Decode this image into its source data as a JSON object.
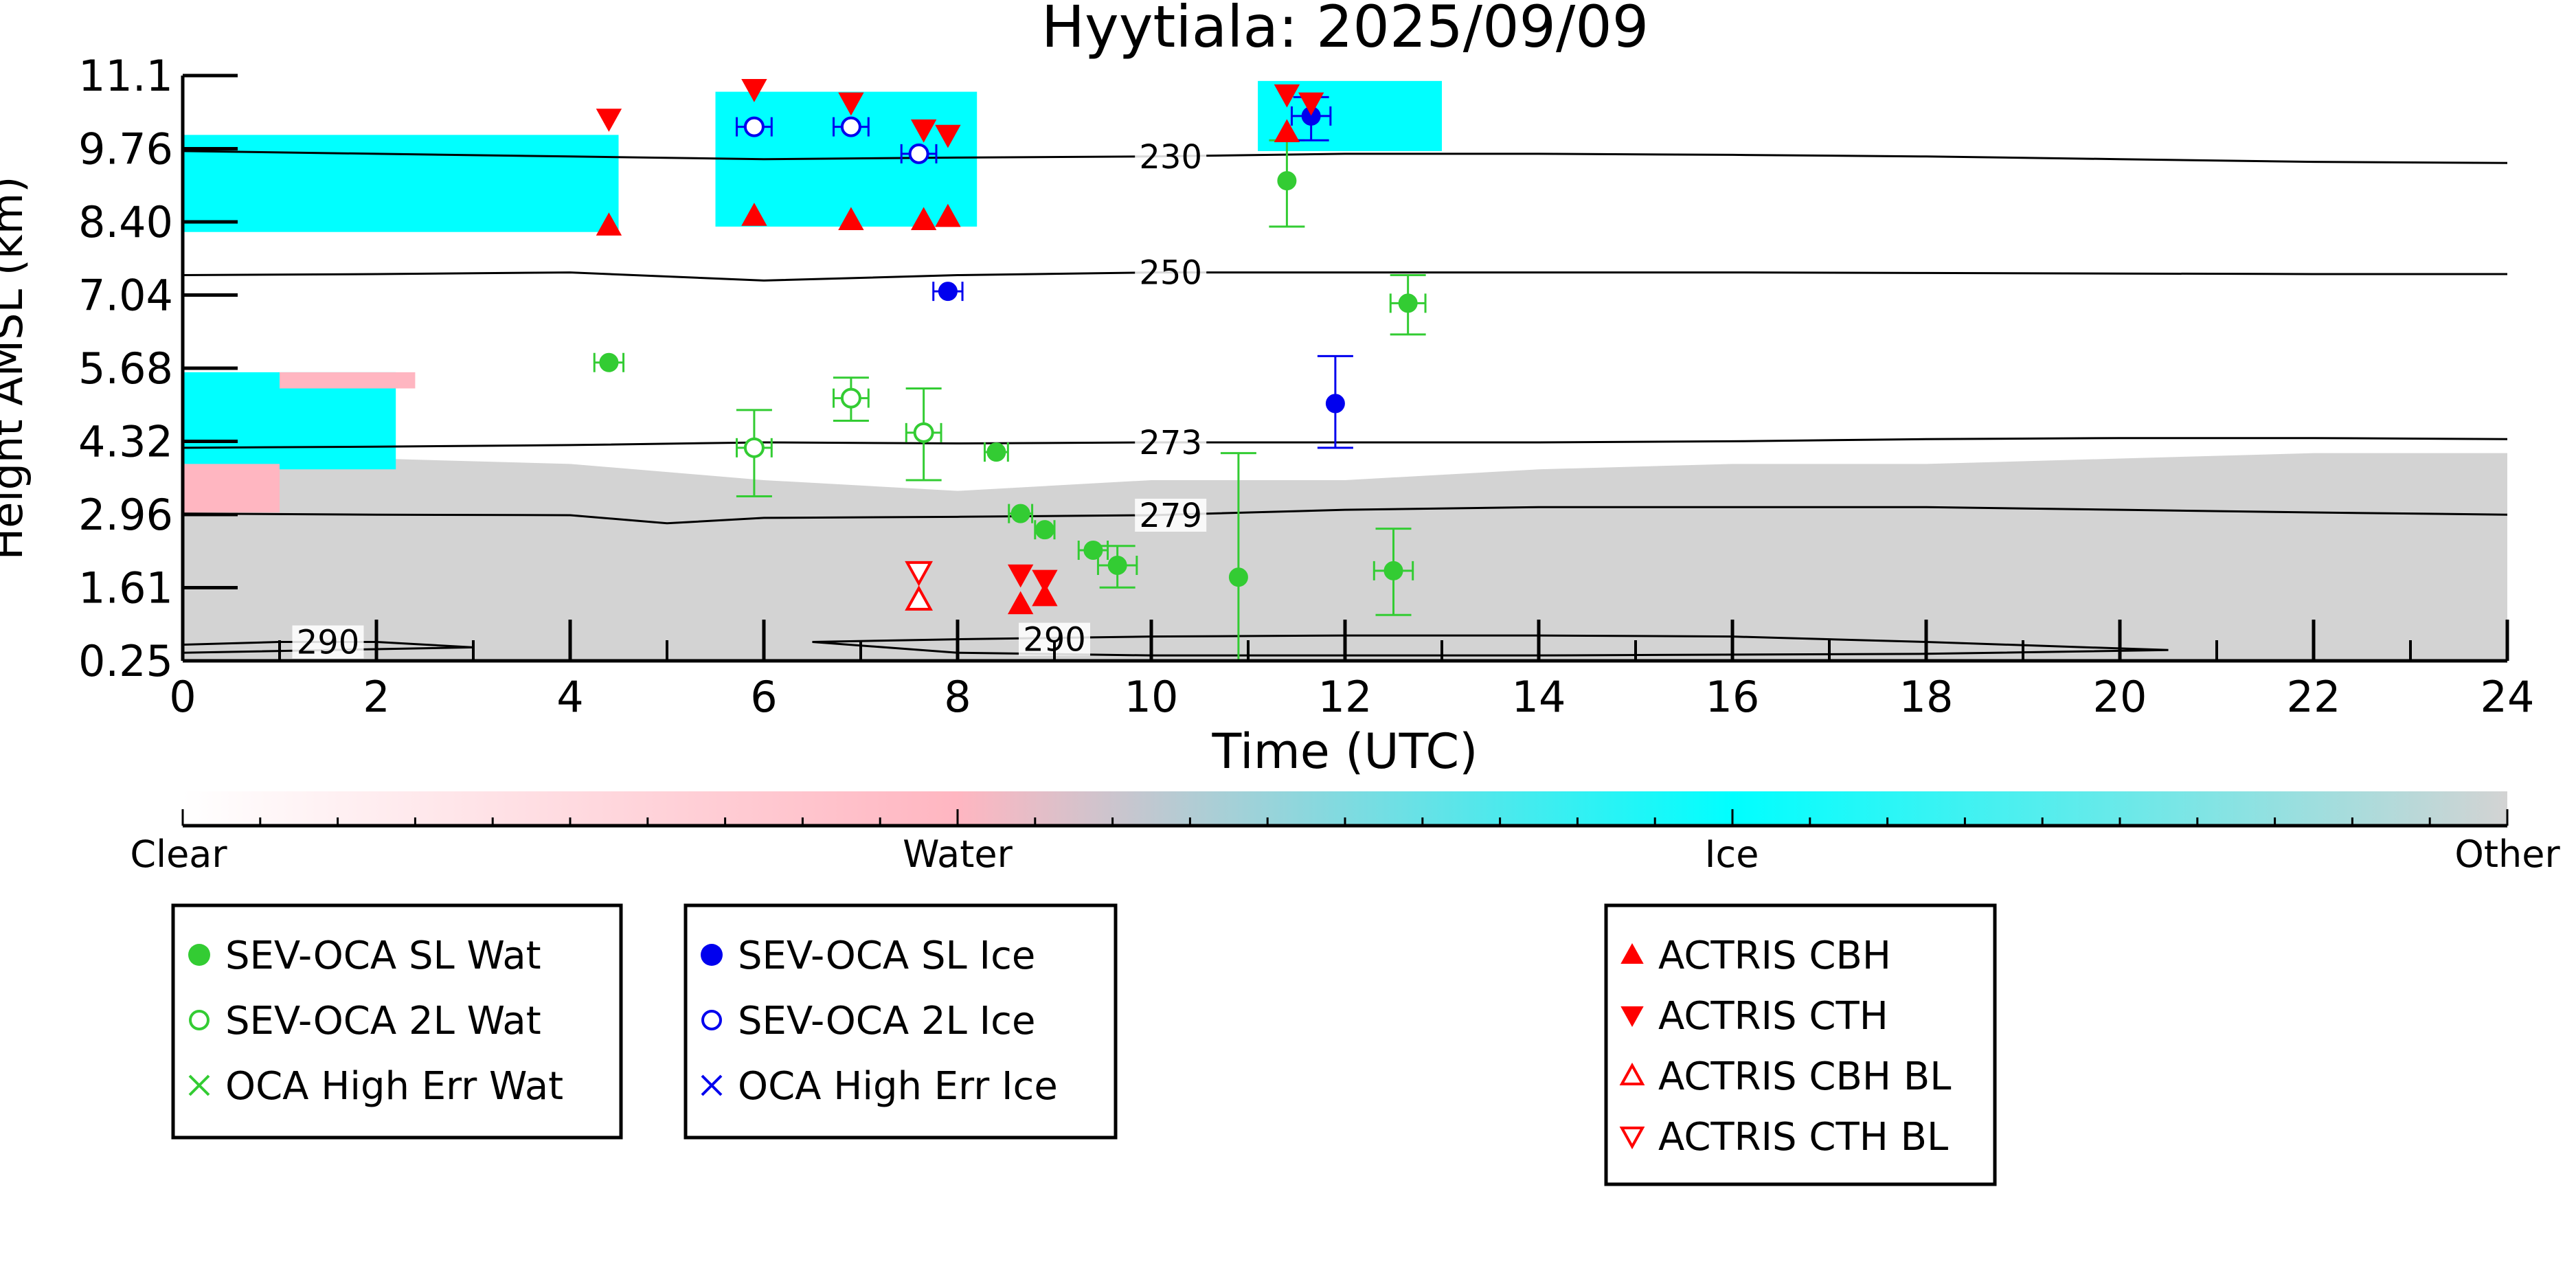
{
  "chart_data": {
    "type": "scatter",
    "title": "Hyytiala: 2025/09/09",
    "xlabel": "Time (UTC)",
    "ylabel": "Height AMSL (km)",
    "xlim": [
      0,
      24
    ],
    "ylim": [
      0.25,
      11.1
    ],
    "xticks": [
      "0",
      "2",
      "4",
      "6",
      "8",
      "10",
      "12",
      "14",
      "16",
      "18",
      "20",
      "22",
      "24"
    ],
    "yticks": [
      "0.25",
      "1.61",
      "2.96",
      "4.32",
      "5.68",
      "7.04",
      "8.40",
      "9.76",
      "11.1"
    ],
    "background": {
      "description_labels": [
        "Clear",
        "Water",
        "Ice",
        "Other"
      ],
      "colorbar_colors": [
        "#ffffff",
        "#ffb6c1",
        "#00ffff",
        "#d3d3d3"
      ],
      "regions": [
        {
          "class": "Other",
          "x": [
            0,
            24
          ],
          "ymax_profile": [
            [
              0,
              4.1
            ],
            [
              2,
              4.0
            ],
            [
              4,
              3.9
            ],
            [
              6,
              3.6
            ],
            [
              8,
              3.4
            ],
            [
              10,
              3.6
            ],
            [
              12,
              3.6
            ],
            [
              14,
              3.8
            ],
            [
              16,
              3.9
            ],
            [
              18,
              3.9
            ],
            [
              20,
              4.0
            ],
            [
              22,
              4.1
            ],
            [
              24,
              4.1
            ]
          ]
        },
        {
          "class": "Ice",
          "x": [
            0,
            4.5
          ],
          "y": [
            8.2,
            10.0
          ]
        },
        {
          "class": "Ice",
          "x": [
            5.5,
            8.2
          ],
          "y": [
            8.3,
            10.8
          ]
        },
        {
          "class": "Ice",
          "x": [
            11.1,
            13.0
          ],
          "y": [
            9.7,
            11.0
          ]
        },
        {
          "class": "Ice",
          "x": [
            0,
            2.2
          ],
          "y": [
            3.8,
            5.6
          ]
        },
        {
          "class": "Water",
          "x": [
            1.0,
            2.4
          ],
          "y": [
            5.3,
            5.6
          ]
        },
        {
          "class": "Water",
          "x": [
            0,
            1.0
          ],
          "y": [
            3.0,
            3.9
          ]
        }
      ]
    },
    "contours": [
      {
        "label": "230",
        "x": [
          0,
          2,
          4,
          6,
          8,
          10,
          12,
          14,
          16,
          18,
          20,
          22,
          24
        ],
        "y": [
          9.7,
          9.65,
          9.6,
          9.55,
          9.58,
          9.6,
          9.65,
          9.65,
          9.63,
          9.6,
          9.55,
          9.5,
          9.48
        ]
      },
      {
        "label": "250",
        "x": [
          0,
          2,
          4,
          6,
          8,
          10,
          12,
          14,
          16,
          18,
          20,
          22,
          24
        ],
        "y": [
          7.4,
          7.42,
          7.45,
          7.3,
          7.4,
          7.45,
          7.45,
          7.45,
          7.45,
          7.44,
          7.43,
          7.42,
          7.42
        ]
      },
      {
        "label": "273",
        "x": [
          0,
          2,
          4,
          6,
          8,
          10,
          12,
          14,
          16,
          18,
          20,
          22,
          24
        ],
        "y": [
          4.2,
          4.22,
          4.25,
          4.3,
          4.28,
          4.3,
          4.3,
          4.3,
          4.32,
          4.36,
          4.38,
          4.38,
          4.36
        ]
      },
      {
        "label": "279",
        "x": [
          0,
          2,
          4,
          5,
          6,
          8,
          10,
          12,
          14,
          16,
          18,
          20,
          22,
          24
        ],
        "y": [
          2.98,
          2.96,
          2.95,
          2.8,
          2.9,
          2.92,
          2.95,
          3.05,
          3.1,
          3.1,
          3.1,
          3.05,
          3.0,
          2.96
        ]
      },
      {
        "label": "290",
        "x": [
          0,
          1,
          2,
          3,
          0
        ],
        "y": [
          0.55,
          0.6,
          0.6,
          0.5,
          0.4
        ],
        "closed": true
      },
      {
        "label": "290",
        "x": [
          6.5,
          8,
          10,
          12,
          14,
          16,
          18,
          20.5,
          18,
          14,
          10,
          8,
          6.5
        ],
        "y": [
          0.6,
          0.65,
          0.7,
          0.72,
          0.72,
          0.7,
          0.6,
          0.45,
          0.38,
          0.35,
          0.35,
          0.4,
          0.6
        ],
        "closed": true
      }
    ],
    "series": [
      {
        "name": "SEV-OCA SL Wat",
        "color": "#33cc33",
        "marker": "filled-circle",
        "points": [
          {
            "x": 4.4,
            "y": 5.78,
            "xerr": 0.15
          },
          {
            "x": 8.4,
            "y": 4.12,
            "xerr": 0.12
          },
          {
            "x": 8.65,
            "y": 2.98,
            "xerr": 0.12
          },
          {
            "x": 8.9,
            "y": 2.68,
            "xerr": 0.1
          },
          {
            "x": 9.4,
            "y": 2.3,
            "xerr": 0.15
          },
          {
            "x": 9.65,
            "y": 2.02,
            "xerr": 0.2,
            "yerr": [
              1.61,
              2.38
            ]
          },
          {
            "x": 10.9,
            "y": 1.8,
            "yerr": [
              0.25,
              4.1
            ]
          },
          {
            "x": 11.4,
            "y": 9.15,
            "yerr": [
              8.3,
              9.9
            ]
          },
          {
            "x": 12.5,
            "y": 1.92,
            "xerr": 0.2,
            "yerr": [
              1.1,
              2.7
            ]
          },
          {
            "x": 12.65,
            "y": 6.88,
            "xerr": 0.18,
            "yerr": [
              6.3,
              7.4
            ]
          }
        ]
      },
      {
        "name": "SEV-OCA 2L Wat",
        "color": "#33cc33",
        "marker": "open-circle",
        "points": [
          {
            "x": 5.9,
            "y": 4.2,
            "xerr": 0.18,
            "yerr": [
              3.3,
              4.9
            ]
          },
          {
            "x": 6.9,
            "y": 5.12,
            "xerr": 0.18,
            "yerr": [
              4.7,
              5.5
            ]
          },
          {
            "x": 7.65,
            "y": 4.48,
            "xerr": 0.18,
            "yerr": [
              3.6,
              5.3
            ]
          }
        ]
      },
      {
        "name": "OCA High Err Wat",
        "color": "#33cc33",
        "marker": "x",
        "points": []
      },
      {
        "name": "SEV-OCA SL Ice",
        "color": "#0000ee",
        "marker": "filled-circle",
        "points": [
          {
            "x": 7.9,
            "y": 7.1,
            "xerr": 0.15
          },
          {
            "x": 11.65,
            "y": 10.35,
            "xerr": 0.2,
            "yerr": [
              9.9,
              10.7
            ]
          },
          {
            "x": 11.9,
            "y": 5.02,
            "yerr": [
              4.2,
              5.9
            ]
          }
        ]
      },
      {
        "name": "SEV-OCA 2L Ice",
        "color": "#0000ee",
        "marker": "open-circle",
        "points": [
          {
            "x": 5.9,
            "y": 10.15,
            "xerr": 0.18
          },
          {
            "x": 6.9,
            "y": 10.15,
            "xerr": 0.18
          },
          {
            "x": 7.6,
            "y": 9.65,
            "xerr": 0.18
          }
        ]
      },
      {
        "name": "OCA High Err Ice",
        "color": "#0000ee",
        "marker": "x",
        "points": []
      },
      {
        "name": "ACTRIS CBH",
        "color": "#ff0000",
        "marker": "filled-triangle-up",
        "points": [
          {
            "x": 4.4,
            "y": 8.32
          },
          {
            "x": 5.9,
            "y": 8.5
          },
          {
            "x": 6.9,
            "y": 8.42
          },
          {
            "x": 7.65,
            "y": 8.42
          },
          {
            "x": 7.9,
            "y": 8.48
          },
          {
            "x": 11.4,
            "y": 10.05
          },
          {
            "x": 8.65,
            "y": 1.3
          },
          {
            "x": 8.9,
            "y": 1.45
          }
        ]
      },
      {
        "name": "ACTRIS CTH",
        "color": "#ff0000",
        "marker": "filled-triangle-down",
        "points": [
          {
            "x": 4.4,
            "y": 10.3
          },
          {
            "x": 5.9,
            "y": 10.85
          },
          {
            "x": 6.9,
            "y": 10.6
          },
          {
            "x": 7.65,
            "y": 10.1
          },
          {
            "x": 7.9,
            "y": 10.0
          },
          {
            "x": 11.4,
            "y": 10.75
          },
          {
            "x": 11.65,
            "y": 10.6
          },
          {
            "x": 8.65,
            "y": 1.85
          },
          {
            "x": 8.9,
            "y": 1.75
          }
        ]
      },
      {
        "name": "ACTRIS CBH BL",
        "color": "#ff0000",
        "marker": "open-triangle-up",
        "points": [
          {
            "x": 7.6,
            "y": 1.38
          }
        ]
      },
      {
        "name": "ACTRIS CTH BL",
        "color": "#ff0000",
        "marker": "open-triangle-down",
        "points": [
          {
            "x": 7.6,
            "y": 1.9
          }
        ]
      }
    ],
    "legends": [
      {
        "entries": [
          "SEV-OCA SL Wat",
          "SEV-OCA 2L Wat",
          "OCA High Err Wat"
        ]
      },
      {
        "entries": [
          "SEV-OCA SL Ice",
          "SEV-OCA 2L Ice",
          "OCA High Err Ice"
        ]
      },
      {
        "entries": [
          "ACTRIS CBH",
          "ACTRIS CTH",
          "ACTRIS CBH BL",
          "ACTRIS CTH BL"
        ]
      }
    ]
  }
}
